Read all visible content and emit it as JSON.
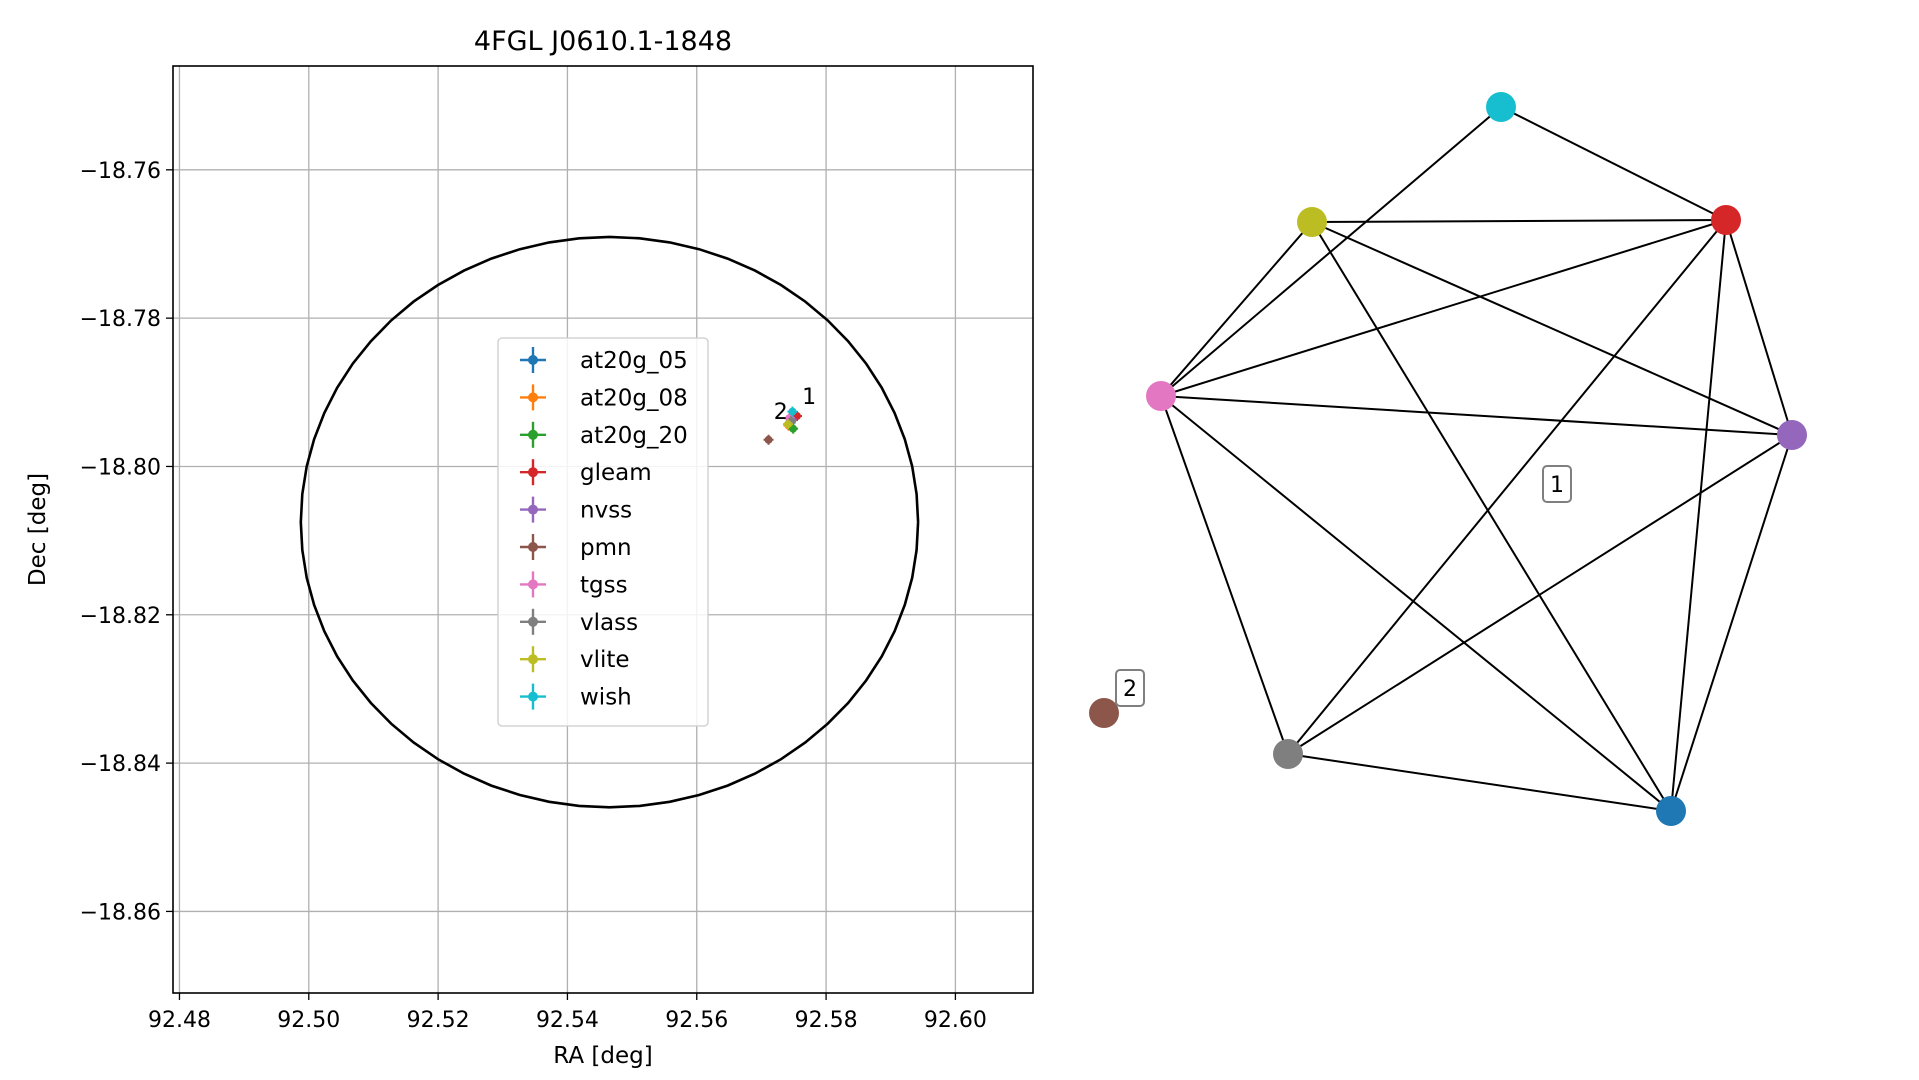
{
  "chart_data": [
    {
      "type": "scatter",
      "title": "4FGL J0610.1-1848",
      "xlabel": "RA [deg]",
      "ylabel": "Dec [deg]",
      "xlim": [
        92.479,
        92.612
      ],
      "ylim": [
        -18.871,
        -18.746
      ],
      "xticks": [
        "92.48",
        "92.50",
        "92.52",
        "92.54",
        "92.56",
        "92.58",
        "92.60"
      ],
      "yticks": [
        "−18.76",
        "−18.78",
        "−18.80",
        "−18.82",
        "−18.84",
        "−18.86"
      ],
      "grid": true,
      "legend_position": "center-left",
      "circle": {
        "center_ra": 92.5465,
        "center_dec": -18.8075,
        "radius_deg": 0.0442
      },
      "series": [
        {
          "name": "at20g_05",
          "color": "#1f77b4",
          "ra": 92.5745,
          "dec": -18.7941
        },
        {
          "name": "at20g_08",
          "color": "#ff7f0e",
          "ra": 92.5742,
          "dec": -18.7945
        },
        {
          "name": "at20g_20",
          "color": "#2ca02c",
          "ra": 92.5749,
          "dec": -18.7949
        },
        {
          "name": "gleam",
          "color": "#d62728",
          "ra": 92.5755,
          "dec": -18.7932
        },
        {
          "name": "nvss",
          "color": "#9467bd",
          "ra": 92.5747,
          "dec": -18.7937
        },
        {
          "name": "pmn",
          "color": "#8c564b",
          "ra": 92.5711,
          "dec": -18.7964
        },
        {
          "name": "tgss",
          "color": "#e377c2",
          "ra": 92.5743,
          "dec": -18.7935
        },
        {
          "name": "vlass",
          "color": "#7f7f7f",
          "ra": 92.5746,
          "dec": -18.7939
        },
        {
          "name": "vlite",
          "color": "#bcbd22",
          "ra": 92.5741,
          "dec": -18.7943
        },
        {
          "name": "wish",
          "color": "#17becf",
          "ra": 92.5748,
          "dec": -18.7926
        }
      ],
      "annotations": [
        {
          "text": "1",
          "ra": 92.5763,
          "dec": -18.7916
        },
        {
          "text": "2",
          "ra": 92.5719,
          "dec": -18.7936
        }
      ]
    },
    {
      "type": "network",
      "nodes": [
        {
          "id": "wish",
          "color": "#17becf"
        },
        {
          "id": "vlite",
          "color": "#bcbd22"
        },
        {
          "id": "gleam",
          "color": "#d62728"
        },
        {
          "id": "tgss",
          "color": "#e377c2"
        },
        {
          "id": "nvss",
          "color": "#9467bd"
        },
        {
          "id": "pmn",
          "color": "#8c564b"
        },
        {
          "id": "vlass",
          "color": "#7f7f7f"
        },
        {
          "id": "at20g_05",
          "color": "#1f77b4"
        }
      ],
      "edges": [
        [
          "wish",
          "gleam"
        ],
        [
          "wish",
          "tgss"
        ],
        [
          "vlite",
          "gleam"
        ],
        [
          "vlite",
          "tgss"
        ],
        [
          "vlite",
          "nvss"
        ],
        [
          "vlite",
          "at20g_05"
        ],
        [
          "gleam",
          "tgss"
        ],
        [
          "gleam",
          "nvss"
        ],
        [
          "gleam",
          "vlass"
        ],
        [
          "gleam",
          "at20g_05"
        ],
        [
          "tgss",
          "nvss"
        ],
        [
          "tgss",
          "vlass"
        ],
        [
          "tgss",
          "at20g_05"
        ],
        [
          "nvss",
          "vlass"
        ],
        [
          "nvss",
          "at20g_05"
        ],
        [
          "vlass",
          "at20g_05"
        ]
      ],
      "labels": [
        {
          "text": "1",
          "group": "component"
        },
        {
          "text": "2",
          "group": "component"
        }
      ]
    }
  ]
}
